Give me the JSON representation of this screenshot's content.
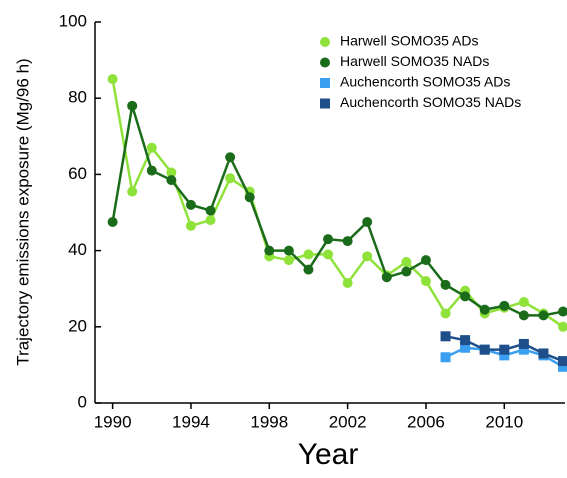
{
  "chart_data": {
    "type": "line",
    "x_label": "Year",
    "y_label": "Trajectory emissions exposure (Mg/96 h)",
    "xlim": [
      1989.1,
      2013.1
    ],
    "xticks": [
      1990,
      1994,
      1998,
      2002,
      2006,
      2010
    ],
    "ylim": [
      0,
      100
    ],
    "yticks": [
      0,
      20,
      40,
      60,
      80,
      100
    ],
    "legend": "upper right",
    "series": [
      {
        "name": "Harwell SOMO35 ADs",
        "color": "#8fe23a",
        "marker": "circle",
        "x": [
          1990,
          1991,
          1992,
          1993,
          1994,
          1995,
          1996,
          1997,
          1998,
          1999,
          2000,
          2001,
          2002,
          2003,
          2004,
          2005,
          2006,
          2007,
          2008,
          2009,
          2010,
          2011,
          2012,
          2013
        ],
        "values": [
          85,
          55.5,
          67,
          60.5,
          46.5,
          48,
          59,
          55.5,
          38.5,
          37.5,
          39,
          39,
          31.5,
          38.5,
          33.5,
          37,
          32,
          23.5,
          29.5,
          23.5,
          25,
          26.5,
          23.5,
          20
        ]
      },
      {
        "name": "Harwell SOMO35 NADs",
        "color": "#1a6b1a",
        "marker": "circle",
        "x": [
          1990,
          1991,
          1992,
          1993,
          1994,
          1995,
          1996,
          1997,
          1998,
          1999,
          2000,
          2001,
          2002,
          2003,
          2004,
          2005,
          2006,
          2007,
          2008,
          2009,
          2010,
          2011,
          2012,
          2013
        ],
        "values": [
          47.5,
          78,
          61,
          58.5,
          52,
          50.5,
          64.5,
          54,
          40,
          40,
          35,
          43,
          42.5,
          47.5,
          33,
          34.5,
          37.5,
          31,
          28,
          24.5,
          25.5,
          23,
          23,
          24
        ]
      },
      {
        "name": "Auchencorth SOMO35 ADs",
        "color": "#3a9ff0",
        "marker": "square",
        "x": [
          2007,
          2008,
          2009,
          2010,
          2011,
          2012,
          2013
        ],
        "values": [
          12,
          14.5,
          14,
          12.5,
          14,
          12.5,
          9.5
        ]
      },
      {
        "name": "Auchencorth SOMO35 NADs",
        "color": "#1f4f8a",
        "marker": "square",
        "x": [
          2007,
          2008,
          2009,
          2010,
          2011,
          2012,
          2013
        ],
        "values": [
          17.5,
          16.5,
          14,
          14,
          15.5,
          13,
          11
        ]
      }
    ]
  }
}
